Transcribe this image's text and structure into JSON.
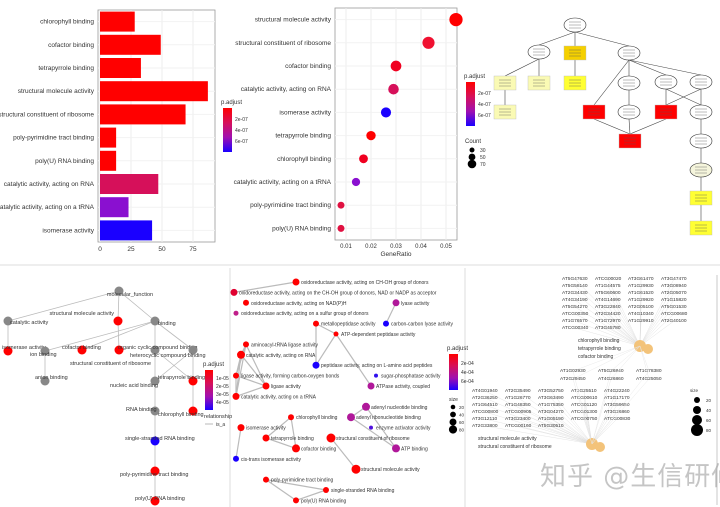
{
  "colors": {
    "red": "#ff0000",
    "crimson": "#d6105a",
    "magenta": "#c0189a",
    "purple": "#8a10d0",
    "blue": "#1a00ff",
    "gray": "#888888",
    "hub": "#f3c37a",
    "gold": "#f5d000",
    "yellow": "#ffff33",
    "paleYellow": "#fafab4",
    "paleNode": "#f5f5dc"
  },
  "watermark": "知乎 @生信研修炼秘籍",
  "chart_data": [
    {
      "type": "bar",
      "orientation": "horizontal",
      "categories": [
        "chlorophyll binding",
        "cofactor binding",
        "tetrapyrrole binding",
        "structural molecule activity",
        "structural constituent of ribosome",
        "poly-pyrimidine tract binding",
        "poly(U) RNA binding",
        "catalytic activity, acting on RNA",
        "catalytic activity, acting on a tRNA",
        "isomerase activity"
      ],
      "values": [
        28,
        49,
        33,
        87,
        69,
        13,
        13,
        47,
        23,
        42
      ],
      "bar_colors": [
        "#ff0000",
        "#ff0000",
        "#ff0000",
        "#ff0000",
        "#ff0000",
        "#ff0000",
        "#ff0000",
        "#d6105a",
        "#8a10d0",
        "#1a00ff"
      ],
      "xticks": [
        "0",
        "25",
        "50",
        "75"
      ],
      "xlim": [
        0,
        90
      ],
      "grid": true,
      "legend": {
        "title": "p.adjust",
        "labels": [
          "2e-07",
          "4e-07",
          "6e-07"
        ],
        "placement": "right"
      }
    },
    {
      "type": "scatter",
      "subtype": "dotplot",
      "categories": [
        "structural molecule activity",
        "structural constituent of ribosome",
        "cofactor binding",
        "catalytic activity, acting on RNA",
        "isomerase activity",
        "tetrapyrrole binding",
        "chlorophyll binding",
        "catalytic activity, acting on a tRNA",
        "poly-pyrimidine tract binding",
        "poly(U) RNA binding"
      ],
      "x": [
        0.054,
        0.043,
        0.03,
        0.029,
        0.026,
        0.02,
        0.017,
        0.014,
        0.008,
        0.008
      ],
      "counts": [
        87,
        69,
        49,
        47,
        42,
        33,
        28,
        23,
        13,
        13
      ],
      "point_colors": [
        "#ff0000",
        "#f01030",
        "#f00020",
        "#d6105a",
        "#1a00ff",
        "#ff0000",
        "#f00020",
        "#8a10d0",
        "#e01040",
        "#e01040"
      ],
      "xlabel": "GeneRatio",
      "xticks": [
        "0.01",
        "0.02",
        "0.03",
        "0.04",
        "0.05"
      ],
      "xlim": [
        0.006,
        0.056
      ],
      "grid": true,
      "legend": {
        "title": "p.adjust",
        "labels": [
          "2e-07",
          "4e-07",
          "6e-07"
        ],
        "size_title": "Count",
        "size_labels": [
          "30",
          "50",
          "70"
        ],
        "placement": "right"
      }
    },
    {
      "type": "diagram",
      "subtype": "GO DAG",
      "nodes": [
        {
          "shape": "ellipse",
          "fill": "#ffffff"
        },
        {
          "shape": "ellipse",
          "fill": "#ffffff"
        },
        {
          "shape": "rect",
          "fill": "#f5d000"
        },
        {
          "shape": "ellipse",
          "fill": "#ffffff"
        },
        {
          "shape": "rect",
          "fill": "#fafab4"
        },
        {
          "shape": "rect",
          "fill": "#fafab4"
        },
        {
          "shape": "rect",
          "fill": "#ffff33"
        },
        {
          "shape": "ellipse",
          "fill": "#ffffff"
        },
        {
          "shape": "ellipse",
          "fill": "#ffffff"
        },
        {
          "shape": "ellipse",
          "fill": "#ffffff"
        },
        {
          "shape": "rect",
          "fill": "#fafab4"
        },
        {
          "shape": "rect",
          "fill": "#ff0000"
        },
        {
          "shape": "ellipse",
          "fill": "#ffffff"
        },
        {
          "shape": "rect",
          "fill": "#ff0000"
        },
        {
          "shape": "ellipse",
          "fill": "#ffffff"
        },
        {
          "shape": "rect",
          "fill": "#ff0000"
        },
        {
          "shape": "ellipse",
          "fill": "#ffffff"
        },
        {
          "shape": "ellipse",
          "fill": "#f5f5dc"
        },
        {
          "shape": "rect",
          "fill": "#ffff33"
        },
        {
          "shape": "rect",
          "fill": "#ffff33"
        }
      ],
      "edges": [
        [
          0,
          1
        ],
        [
          0,
          2
        ],
        [
          0,
          3
        ],
        [
          1,
          4
        ],
        [
          1,
          5
        ],
        [
          2,
          6
        ],
        [
          3,
          11
        ],
        [
          3,
          7
        ],
        [
          3,
          8
        ],
        [
          3,
          9
        ],
        [
          4,
          10
        ],
        [
          7,
          12
        ],
        [
          8,
          13
        ],
        [
          8,
          14
        ],
        [
          9,
          13
        ],
        [
          9,
          14
        ],
        [
          11,
          15
        ],
        [
          12,
          15
        ],
        [
          13,
          15
        ],
        [
          14,
          16
        ],
        [
          16,
          17
        ],
        [
          17,
          18
        ],
        [
          18,
          19
        ]
      ]
    },
    {
      "type": "network",
      "subtype": "GO graph",
      "nodes": [
        {
          "label": "molecular_function",
          "color": "#888888"
        },
        {
          "label": "catalytic activity",
          "color": "#888888"
        },
        {
          "label": "structural molecule activity",
          "color": "#ff0000"
        },
        {
          "label": "binding",
          "color": "#888888"
        },
        {
          "label": "isomerase activity",
          "color": "#ff0000"
        },
        {
          "label": "cofactor binding",
          "color": "#ff0000"
        },
        {
          "label": "structural constituent of ribosome",
          "color": "#ff0000"
        },
        {
          "label": "ion binding",
          "color": "#888888"
        },
        {
          "label": "organic cyclic compound binding",
          "color": "#888888"
        },
        {
          "label": "heterocyclic compound binding",
          "color": "#888888"
        },
        {
          "label": "anion binding",
          "color": "#888888"
        },
        {
          "label": "nucleic acid binding",
          "color": "#888888"
        },
        {
          "label": "tetrapyrrole binding",
          "color": "#ff0000"
        },
        {
          "label": "RNA binding",
          "color": "#888888"
        },
        {
          "label": "chlorophyll binding",
          "color": "#ff0000"
        },
        {
          "label": "single-stranded RNA binding",
          "color": "#1a00ff"
        },
        {
          "label": "poly-pyrimidine tract binding",
          "color": "#ff0000"
        },
        {
          "label": "poly(U) RNA binding",
          "color": "#ff0000"
        }
      ],
      "edges": [
        [
          0,
          1
        ],
        [
          0,
          2
        ],
        [
          0,
          3
        ],
        [
          1,
          4
        ],
        [
          2,
          6
        ],
        [
          3,
          7
        ],
        [
          3,
          5
        ],
        [
          3,
          8
        ],
        [
          3,
          9
        ],
        [
          7,
          10
        ],
        [
          8,
          11
        ],
        [
          8,
          12
        ],
        [
          9,
          11
        ],
        [
          9,
          12
        ],
        [
          11,
          13
        ],
        [
          12,
          14
        ],
        [
          13,
          15
        ],
        [
          15,
          16
        ],
        [
          16,
          17
        ]
      ],
      "legend": {
        "title": "p.adjust",
        "labels": [
          "1e-05",
          "2e-05",
          "3e-05",
          "4e-05"
        ],
        "relationship_title": "relationship",
        "relationship_label": "is_a"
      }
    },
    {
      "type": "network",
      "subtype": "enrichment map",
      "nodes": [
        {
          "label": "oxidoreductase activity, acting on CH-OH group of donors",
          "color": "#ff0000"
        },
        {
          "label": "oxidoreductase activity, acting on the CH-OH group of donors, NAD or NADP as acceptor",
          "color": "#e00030"
        },
        {
          "label": "lyase activity",
          "color": "#b0189a"
        },
        {
          "label": "oxidoreductase activity, acting on NAD(P)H",
          "color": "#ff0000"
        },
        {
          "label": "oxidoreductase activity, acting on a sulfur group of donors",
          "color": "#c0208a"
        },
        {
          "label": "metallopeptidase activity",
          "color": "#ff0000"
        },
        {
          "label": "carbon-carbon lyase activity",
          "color": "#1a00ff"
        },
        {
          "label": "ATP-dependent peptidase activity",
          "color": "#ff0000"
        },
        {
          "label": "aminoacyl-tRNA ligase activity",
          "color": "#ff0000"
        },
        {
          "label": "catalytic activity, acting on RNA",
          "color": "#ff0000"
        },
        {
          "label": "peptidase activity, acting on L-amino acid peptides",
          "color": "#1a00ff"
        },
        {
          "label": "ligase activity, forming carbon-oxygen bonds",
          "color": "#ff0000"
        },
        {
          "label": "sugar-phosphatase activity",
          "color": "#3010ee"
        },
        {
          "label": "ATPase activity, coupled",
          "color": "#b0189a"
        },
        {
          "label": "ligase activity",
          "color": "#ff0000"
        },
        {
          "label": "catalytic activity, acting on a tRNA",
          "color": "#ff0000"
        },
        {
          "label": "adenyl nucleotide binding",
          "color": "#b0189a"
        },
        {
          "label": "adenyl ribonucleotide binding",
          "color": "#b0189a"
        },
        {
          "label": "chlorophyll binding",
          "color": "#ff0000"
        },
        {
          "label": "isomerase activity",
          "color": "#ff0000"
        },
        {
          "label": "enzyme activator activity",
          "color": "#5010dd"
        },
        {
          "label": "tetrapyrrole binding",
          "color": "#ff0000"
        },
        {
          "label": "structural constituent of ribosome",
          "color": "#ff0000"
        },
        {
          "label": "ATP binding",
          "color": "#b0189a"
        },
        {
          "label": "cofactor binding",
          "color": "#ff0000"
        },
        {
          "label": "cis-trans isomerase activity",
          "color": "#1a00ff"
        },
        {
          "label": "structural molecule activity",
          "color": "#ff0000"
        },
        {
          "label": "poly-pyrimidine tract binding",
          "color": "#ff0000"
        },
        {
          "label": "single-stranded RNA binding",
          "color": "#ff0000"
        },
        {
          "label": "poly(U) RNA binding",
          "color": "#ff0000"
        }
      ],
      "edges": [
        [
          0,
          1
        ],
        [
          2,
          6
        ],
        [
          5,
          7
        ],
        [
          5,
          10
        ],
        [
          7,
          10
        ],
        [
          7,
          13
        ],
        [
          8,
          9
        ],
        [
          8,
          11
        ],
        [
          8,
          14
        ],
        [
          8,
          15
        ],
        [
          9,
          11
        ],
        [
          9,
          14
        ],
        [
          9,
          15
        ],
        [
          11,
          14
        ],
        [
          11,
          15
        ],
        [
          14,
          15
        ],
        [
          16,
          17
        ],
        [
          16,
          23
        ],
        [
          17,
          23
        ],
        [
          18,
          21
        ],
        [
          18,
          24
        ],
        [
          21,
          24
        ],
        [
          19,
          25
        ],
        [
          22,
          26
        ],
        [
          27,
          28
        ],
        [
          27,
          29
        ],
        [
          28,
          29
        ]
      ],
      "legend": {
        "title": "p.adjust",
        "labels": [
          "2e-04",
          "4e-04",
          "6e-04"
        ],
        "size_title": "size",
        "size_labels": [
          "20",
          "40",
          "60",
          "80"
        ]
      }
    },
    {
      "type": "network",
      "subtype": "gene-concept network",
      "hubs": [
        {
          "terms": [
            "chlorophyll binding",
            "tetrapyrrole binding",
            "cofactor binding"
          ],
          "genes": [
            "AT5G47630",
            "ATCG00020",
            "AT3G61470",
            "AT3G47470",
            "AT5G58140",
            "AT1G44575",
            "AT1G29930",
            "AT3G08940",
            "AT2G34430",
            "AT5G60600",
            "AT1G61520",
            "AT2G05070",
            "AT4G34190",
            "AT4G14690",
            "AT1G29920",
            "AT1G15820",
            "AT5G54270",
            "AT3G22840",
            "AT2G05100",
            "AT5G01530",
            "ATCG00350",
            "AT2G34420",
            "AT4G10340",
            "ATCG00680",
            "AT1G76570",
            "AT1G72970",
            "AT1G29910",
            "AT2G40100",
            "ATCG00340",
            "AT3G45780"
          ]
        },
        {
          "terms": [
            "structural molecule activity",
            "structural constituent of ribosome"
          ],
          "genes": [
            "AT4G01940",
            "AT2G35490",
            "AT3G52750",
            "AT1G25510",
            "AT4G22240",
            "AT2G36250",
            "AT1G26770",
            "AT3G63490",
            "ATCG00610",
            "AT1G17170",
            "AT1G64510",
            "AT1G48350",
            "AT1G75350",
            "ATCG01120",
            "AT3G59650",
            "ATCG00800",
            "ATCG00905",
            "AT3G04270",
            "ATCG01300",
            "AT3G26860",
            "AT3G12110",
            "AT3G23400",
            "AT1G05190",
            "ATCG00750",
            "ATCG00830",
            "AT2G33800",
            "ATCG00160",
            "AT5G30510"
          ]
        }
      ],
      "bridge_genes": [
        "AT1G02930",
        "AT5G26840",
        "AT1G78380",
        "AT2G29450",
        "AT4G26860",
        "AT4G25050"
      ],
      "legend": {
        "title": "size",
        "size_labels": [
          "20",
          "40",
          "60",
          "80"
        ]
      }
    }
  ]
}
